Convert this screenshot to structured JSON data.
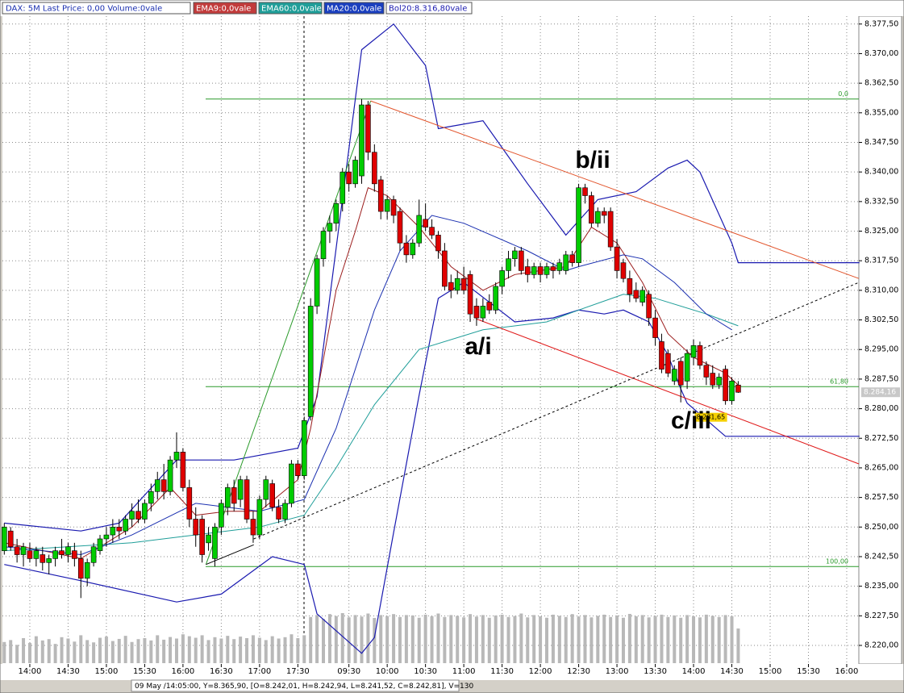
{
  "chart_data": {
    "type": "candlestick",
    "title": "DAX: 5M Last Price: 0,00 Volume:0vale",
    "status_bar": "09 May /14:05:00, Y=8.365,90, [O=8.242,01, H=8.242,94, L=8.241,52, C=8.242,81], V=130",
    "last_price_label": "8.284,16",
    "low_price_label": "8.281,65",
    "up_color": "#00cc00",
    "down_color": "#e00000",
    "volume_color": "#b8b8b8",
    "grid": true,
    "xlim": [
      -0.67,
      133.9
    ],
    "ylim": [
      8215.5,
      8379.5
    ],
    "xticks": [
      {
        "value": 4,
        "label": "14:00"
      },
      {
        "value": 10,
        "label": "14:30"
      },
      {
        "value": 16,
        "label": "15:00"
      },
      {
        "value": 22,
        "label": "15:30"
      },
      {
        "value": 28,
        "label": "16:00"
      },
      {
        "value": 34,
        "label": "16:30"
      },
      {
        "value": 40,
        "label": "17:00"
      },
      {
        "value": 46,
        "label": "17:30"
      },
      {
        "value": 54,
        "label": "09:30"
      },
      {
        "value": 60,
        "label": "10:00"
      },
      {
        "value": 66,
        "label": "10:30"
      },
      {
        "value": 72,
        "label": "11:00"
      },
      {
        "value": 78,
        "label": "11:30"
      },
      {
        "value": 84,
        "label": "12:00"
      },
      {
        "value": 90,
        "label": "12:30"
      },
      {
        "value": 96,
        "label": "13:00"
      },
      {
        "value": 102,
        "label": "13:30"
      },
      {
        "value": 108,
        "label": "14:00"
      },
      {
        "value": 114,
        "label": "14:30"
      },
      {
        "value": 120,
        "label": "15:00"
      },
      {
        "value": 126,
        "label": "15:30"
      },
      {
        "value": 132,
        "label": "16:00"
      }
    ],
    "yticks": [
      {
        "value": 8220,
        "label": "8.220,00"
      },
      {
        "value": 8227.5,
        "label": "8.227,50"
      },
      {
        "value": 8235,
        "label": "8.235,00"
      },
      {
        "value": 8242.5,
        "label": "8.242,50"
      },
      {
        "value": 8250,
        "label": "8.250,00"
      },
      {
        "value": 8257.5,
        "label": "8.257,50"
      },
      {
        "value": 8265,
        "label": "8.265,00"
      },
      {
        "value": 8272.5,
        "label": "8.272,50"
      },
      {
        "value": 8280,
        "label": "8.280,00"
      },
      {
        "value": 8287.5,
        "label": "8.287,50"
      },
      {
        "value": 8295,
        "label": "8.295,00"
      },
      {
        "value": 8302.5,
        "label": "8.302,50"
      },
      {
        "value": 8310,
        "label": "8.310,00"
      },
      {
        "value": 8317.5,
        "label": "8.317,50"
      },
      {
        "value": 8325,
        "label": "8.325,00"
      },
      {
        "value": 8332.5,
        "label": "8.332,50"
      },
      {
        "value": 8340,
        "label": "8.340,00"
      },
      {
        "value": 8347.5,
        "label": "8.347,50"
      },
      {
        "value": 8355,
        "label": "8.355,00"
      },
      {
        "value": 8362.5,
        "label": "8.362,50"
      },
      {
        "value": 8370,
        "label": "8.370,00"
      },
      {
        "value": 8377.5,
        "label": "8.377,50"
      }
    ],
    "x": [
      0,
      1,
      2,
      3,
      4,
      5,
      6,
      7,
      8,
      9,
      10,
      11,
      12,
      13,
      14,
      15,
      16,
      17,
      18,
      19,
      20,
      21,
      22,
      23,
      24,
      25,
      26,
      27,
      28,
      29,
      30,
      31,
      32,
      33,
      34,
      35,
      36,
      37,
      38,
      39,
      40,
      41,
      42,
      43,
      44,
      45,
      46,
      47,
      48,
      49,
      50,
      51,
      52,
      53,
      54,
      55,
      56,
      57,
      58,
      59,
      60,
      61,
      62,
      63,
      64,
      65,
      66,
      67,
      68,
      69,
      70,
      71,
      72,
      73,
      74,
      75,
      76,
      77,
      78,
      79,
      80,
      81,
      82,
      83,
      84,
      85,
      86,
      87,
      88,
      89,
      90,
      91,
      92,
      93,
      94,
      95,
      96,
      97,
      98,
      99,
      100,
      101,
      102,
      103,
      104,
      105,
      106,
      107,
      108,
      109,
      110,
      111,
      112,
      113,
      114,
      115
    ],
    "open": [
      8244,
      8249,
      8245,
      8243,
      8244,
      8242,
      8243,
      8241,
      8242,
      8244,
      8243,
      8244,
      8242,
      8237,
      8241,
      8244,
      8247,
      8248,
      8250,
      8249,
      8252,
      8254,
      8252,
      8256,
      8259,
      8262,
      8259,
      8267,
      8269,
      8260,
      8252,
      8252,
      8246,
      8242,
      8250,
      8255,
      8260,
      8257,
      8262,
      8252,
      8248,
      8257,
      8261,
      8255,
      8252,
      8256,
      8266,
      8263,
      8278,
      8306,
      8318,
      8325,
      8327,
      8332,
      8340,
      8337,
      8339,
      8357,
      8345,
      8338,
      8330,
      8333,
      8330,
      8322,
      8319,
      8322,
      8328,
      8326,
      8324,
      8320,
      8312,
      8310,
      8313,
      8314,
      8306,
      8303,
      8307,
      8305,
      8311,
      8315,
      8318,
      8320,
      8316,
      8314,
      8316,
      8314,
      8316,
      8315,
      8315,
      8319,
      8317,
      8336,
      8334,
      8327,
      8330,
      8330,
      8321,
      8317,
      8313,
      8310,
      8307,
      8309,
      8303,
      8297,
      8294,
      8287,
      8292,
      8287,
      8293,
      8296,
      8291,
      8289,
      8286,
      8290,
      8282,
      8286
    ],
    "high": [
      8251,
      8250,
      8247,
      8246,
      8246,
      8245,
      8245,
      8243,
      8245,
      8247,
      8246,
      8246,
      8244,
      8242,
      8246,
      8248,
      8250,
      8252,
      8252,
      8253,
      8256,
      8257,
      8257,
      8261,
      8264,
      8266,
      8268,
      8274,
      8270,
      8262,
      8255,
      8253,
      8250,
      8251,
      8257,
      8261,
      8262,
      8263,
      8263,
      8254,
      8258,
      8263,
      8262,
      8257,
      8257,
      8267,
      8267,
      8278,
      8308,
      8319,
      8326,
      8329,
      8333,
      8341,
      8342,
      8344,
      8358.5,
      8358,
      8347,
      8339,
      8334,
      8334,
      8331,
      8324,
      8323,
      8333,
      8332,
      8328,
      8325,
      8322,
      8314,
      8315,
      8316,
      8315,
      8308,
      8308,
      8309,
      8312,
      8316,
      8320,
      8321,
      8321,
      8318,
      8317,
      8317,
      8317,
      8317,
      8318,
      8320,
      8320,
      8337,
      8337,
      8335,
      8331,
      8331,
      8331,
      8323,
      8318,
      8315,
      8312,
      8311,
      8310,
      8305,
      8299,
      8295,
      8291,
      8293,
      8295,
      8297.5,
      8297,
      8292,
      8291,
      8289,
      8291,
      8288,
      8287
    ],
    "low": [
      8243,
      8244,
      8241,
      8240,
      8241,
      8240,
      8239,
      8238,
      8240,
      8242,
      8241,
      8240,
      8232,
      8235,
      8240,
      8243,
      8245,
      8246,
      8247,
      8248,
      8250,
      8251,
      8251,
      8254,
      8257,
      8257,
      8258,
      8265,
      8259,
      8250,
      8245,
      8241,
      8244,
      8240,
      8248,
      8253,
      8254,
      8255,
      8251,
      8246,
      8247,
      8255,
      8254,
      8251,
      8251,
      8255,
      8262,
      8262,
      8277,
      8304,
      8316,
      8322,
      8325,
      8330,
      8335,
      8336,
      8337,
      8343,
      8335,
      8328,
      8328,
      8327,
      8320,
      8317,
      8318,
      8321,
      8325,
      8323,
      8318,
      8310,
      8308,
      8309,
      8309,
      8302,
      8301,
      8302,
      8304,
      8304,
      8309,
      8313,
      8316,
      8314,
      8312,
      8313,
      8312,
      8313,
      8313,
      8314,
      8314,
      8316,
      8316,
      8332,
      8326,
      8326,
      8327,
      8320,
      8313,
      8312,
      8307,
      8307,
      8306,
      8301,
      8296,
      8289,
      8288,
      8286,
      8281.6,
      8285,
      8291,
      8290,
      8286,
      8285,
      8285,
      8281,
      8281,
      8284
    ],
    "close": [
      8250,
      8245,
      8243,
      8245,
      8242,
      8244,
      8241,
      8242,
      8244,
      8243,
      8245,
      8242,
      8237,
      8241,
      8245,
      8247,
      8248,
      8250,
      8249,
      8252,
      8254,
      8252,
      8256,
      8259,
      8262,
      8259,
      8267,
      8269,
      8260,
      8252,
      8248,
      8243,
      8248,
      8250,
      8256,
      8260,
      8256,
      8262,
      8252,
      8248,
      8257,
      8262,
      8255,
      8252,
      8256,
      8266,
      8263,
      8277,
      8306,
      8318,
      8325,
      8327,
      8332,
      8340,
      8337,
      8343,
      8357,
      8345,
      8337,
      8330,
      8333,
      8329,
      8322,
      8319,
      8322,
      8329,
      8326,
      8324,
      8320,
      8311,
      8310,
      8313,
      8310,
      8304,
      8303,
      8306,
      8305,
      8311,
      8315,
      8318,
      8320,
      8315,
      8314,
      8316,
      8314,
      8316,
      8315,
      8317,
      8319,
      8317,
      8336,
      8334,
      8327,
      8330,
      8329,
      8321,
      8315,
      8313,
      8309,
      8308,
      8310,
      8303,
      8298,
      8290,
      8289,
      8290,
      8286,
      8294,
      8296,
      8291,
      8288,
      8286,
      8288,
      8282,
      8287,
      8284.16
    ],
    "volume": [
      110,
      120,
      95,
      130,
      105,
      140,
      118,
      125,
      100,
      135,
      128,
      112,
      145,
      120,
      108,
      132,
      138,
      115,
      126,
      142,
      110,
      125,
      130,
      118,
      145,
      122,
      136,
      128,
      150,
      140,
      132,
      145,
      120,
      135,
      128,
      142,
      125,
      138,
      130,
      145,
      132,
      120,
      140,
      128,
      135,
      150,
      130,
      145,
      240,
      250,
      230,
      255,
      245,
      260,
      238,
      250,
      242,
      258,
      235,
      250,
      245,
      255,
      240,
      250,
      248,
      236,
      252,
      244,
      258,
      240,
      250,
      246,
      238,
      255,
      242,
      250,
      236,
      248,
      252,
      240,
      245,
      258,
      238,
      250,
      244,
      236,
      252,
      246,
      240,
      255,
      242,
      250,
      238,
      246,
      252,
      240,
      248,
      236,
      256,
      244,
      250,
      238,
      246,
      252,
      240,
      248,
      236,
      250,
      244,
      238,
      252,
      246,
      240,
      250,
      244,
      180
    ],
    "series": [
      {
        "name": "EMA9:0,0vale",
        "color": "#9b1c1c",
        "x": [
          0,
          12,
          20,
          26,
          30,
          35,
          40,
          46,
          48,
          52,
          55,
          57,
          60,
          65,
          70,
          75,
          80,
          88,
          92,
          96,
          100,
          104,
          108,
          113,
          115
        ],
        "values": [
          8246,
          8242,
          8250,
          8260,
          8253,
          8254,
          8254,
          8262,
          8275,
          8310,
          8325,
          8336,
          8334,
          8326,
          8316,
          8310,
          8314,
          8316,
          8326,
          8322,
          8312,
          8299,
          8293,
          8289,
          8286
        ]
      },
      {
        "name": "EMA60:0,0vale",
        "color": "#1f9e99",
        "x": [
          0,
          20,
          40,
          47,
          52,
          58,
          65,
          75,
          85,
          90,
          97,
          102,
          110,
          115
        ],
        "values": [
          8244,
          8246,
          8250,
          8253,
          8265,
          8281,
          8295,
          8300,
          8302,
          8305,
          8309,
          8308,
          8304,
          8301
        ]
      },
      {
        "name": "MA20:0,0vale",
        "color": "#1a2fb0",
        "x": [
          0,
          12,
          20,
          30,
          40,
          47,
          52,
          58,
          62,
          67,
          72,
          82,
          88,
          90,
          97,
          100,
          105,
          110,
          114
        ],
        "values": [
          8245,
          8243,
          8248,
          8256,
          8254,
          8257,
          8275,
          8305,
          8320,
          8329,
          8327,
          8320,
          8315,
          8316,
          8319,
          8318,
          8312,
          8304,
          8300
        ]
      }
    ],
    "bands": {
      "name": "Bol20:8.316,80vale",
      "color": "#1a1ab0",
      "upper": {
        "x": [
          0,
          12,
          18,
          27,
          36,
          46,
          49,
          56,
          61,
          66,
          68,
          75,
          82,
          88,
          93,
          99,
          104,
          107,
          109,
          114,
          115,
          134
        ],
        "values": [
          8251,
          8249,
          8251,
          8267,
          8267,
          8270,
          8283,
          8371,
          8377.5,
          8367,
          8351,
          8353,
          8337,
          8324,
          8333,
          8335,
          8341,
          8343,
          8340,
          8322,
          8317,
          8317
        ]
      },
      "lower": {
        "x": [
          0,
          12,
          27,
          34,
          42,
          47,
          49,
          56,
          58,
          61,
          65,
          68,
          72,
          80,
          86,
          90,
          94,
          97,
          101,
          104,
          106,
          107,
          113,
          134
        ],
        "values": [
          8240.5,
          8236.4,
          8231,
          8233,
          8242.5,
          8240.5,
          8228,
          8218,
          8222,
          8248.6,
          8283.4,
          8308,
          8312,
          8302,
          8303,
          8305,
          8304,
          8305,
          8302,
          8293.6,
          8285,
          8281.4,
          8273,
          8273
        ]
      }
    },
    "fib_levels": [
      {
        "label": "0,0",
        "value": 8358.5
      },
      {
        "label": "61,80",
        "value": 8285.6
      },
      {
        "label": "100,00",
        "value": 8240
      }
    ],
    "trendlines": [
      {
        "color": "#2a9a2a",
        "dash": false,
        "x": [
          31.6,
          57.4
        ],
        "y": [
          8240.5,
          8358
        ]
      },
      {
        "color": "#e2532a",
        "dash": false,
        "x": [
          57.4,
          133.9
        ],
        "y": [
          8358,
          8313
        ]
      },
      {
        "color": "#e01a1a",
        "dash": false,
        "x": [
          73.9,
          133.9
        ],
        "y": [
          8302.8,
          8266
        ]
      },
      {
        "color": "#000000",
        "dash": true,
        "x": [
          39.1,
          133.9
        ],
        "y": [
          8247,
          8312
        ]
      },
      {
        "color": "#000000",
        "dash": false,
        "x": [
          31.6,
          39.1
        ],
        "y": [
          8240.5,
          8245.5
        ]
      }
    ],
    "annotations": [
      "b/ii",
      "a/i",
      "c/iii"
    ]
  }
}
